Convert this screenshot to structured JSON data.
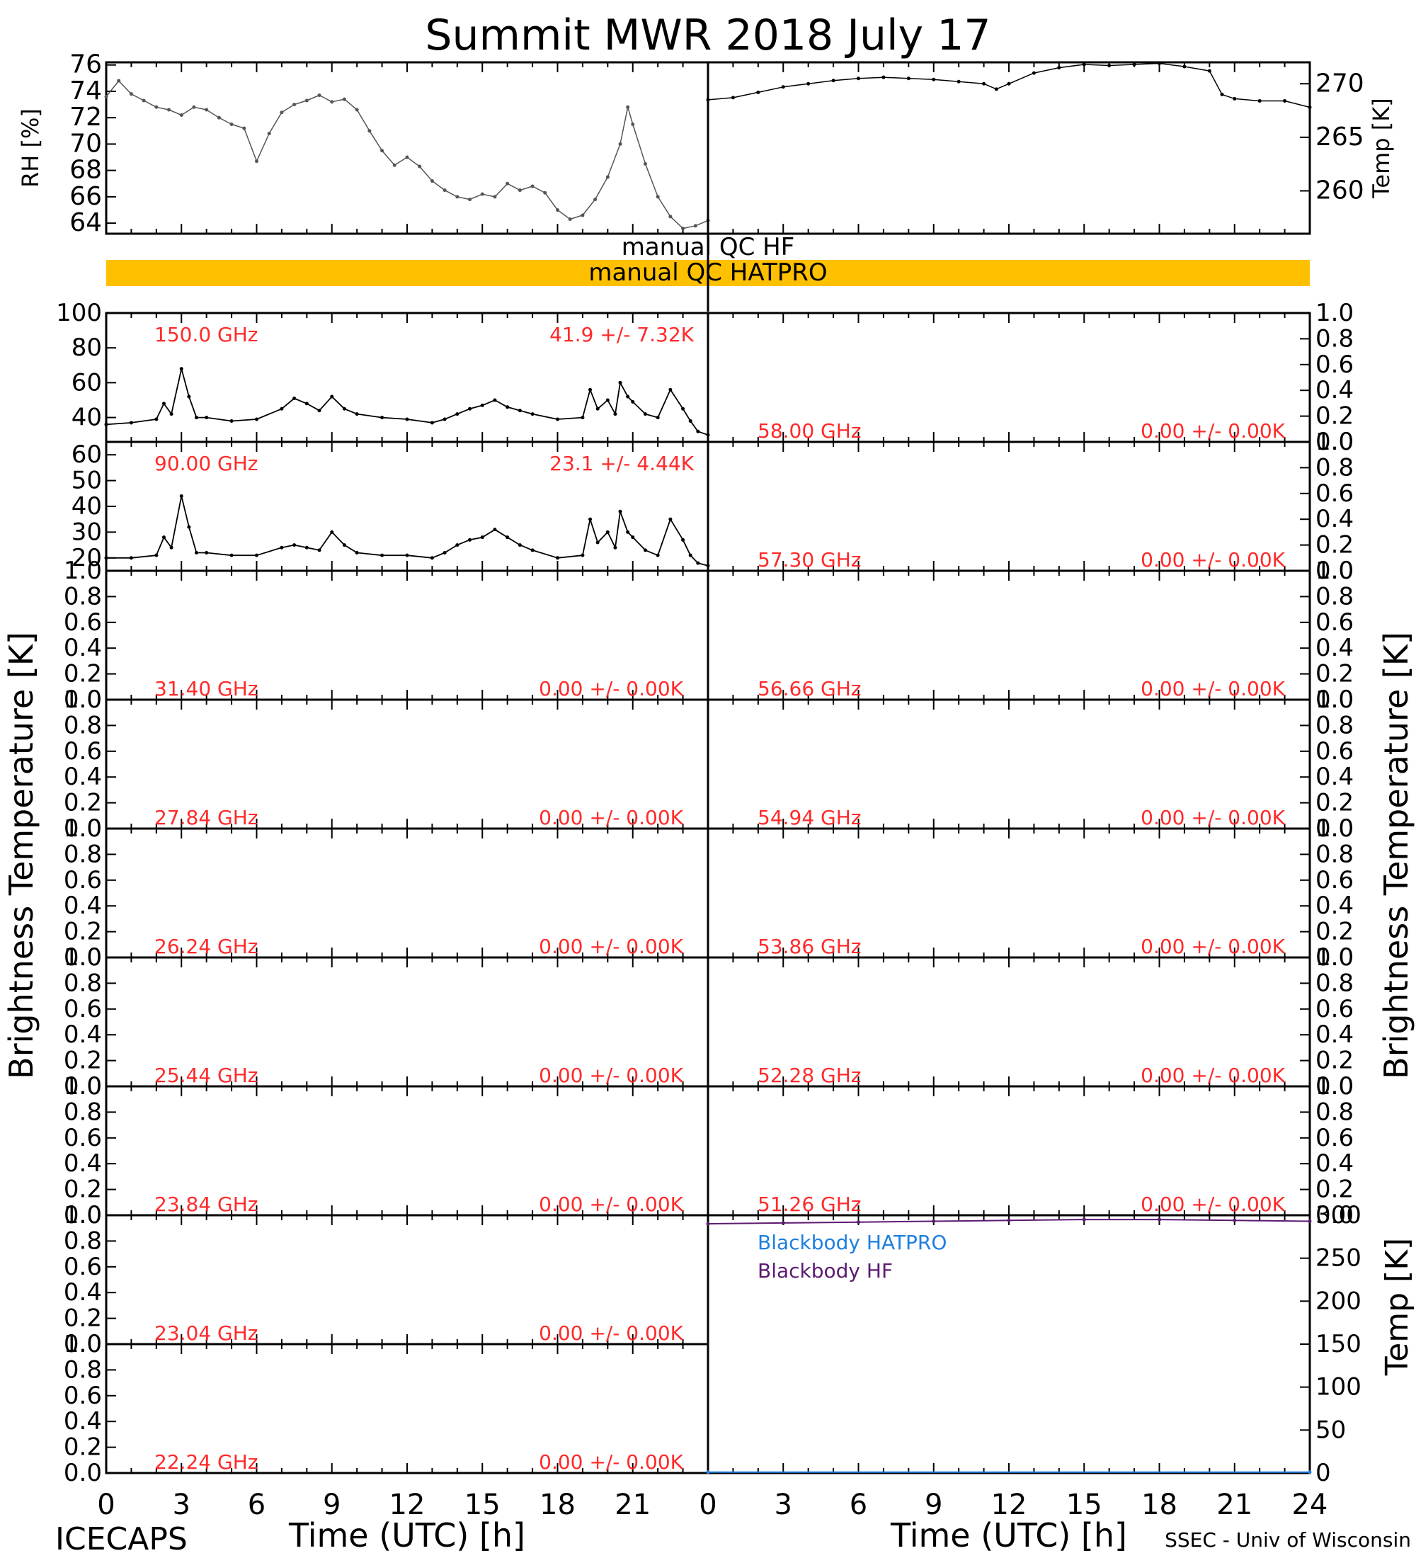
{
  "title": "Summit MWR 2018 July 17",
  "footer": {
    "left": "ICECAPS",
    "right": "SSEC - Univ of Wisconsin",
    "xlabel_left": "Time (UTC) [h]",
    "xlabel_right": "Time (UTC) [h]"
  },
  "x_ticks_left": [
    "0",
    "3",
    "6",
    "9",
    "12",
    "15",
    "18",
    "21"
  ],
  "x_ticks_right": [
    "0",
    "3",
    "6",
    "9",
    "12",
    "15",
    "18",
    "21",
    "24"
  ],
  "big_ylabel_left": "Brightness Temperature [K]",
  "big_ylabel_right": "Brightness Temperature [K]",
  "flag_bars": {
    "hf": "manual QC HF",
    "hatpro": "manual QC HATPRO",
    "hatpro_color": "#ffc000"
  },
  "colors": {
    "freq_label": "#ff2a2a",
    "bb_hatpro": "#1e7fe0",
    "bb_hf": "#5c1a70"
  },
  "chart_data": [
    {
      "id": "rh",
      "type": "scatter",
      "ylabel": "RH [%]",
      "xlim": [
        0,
        24
      ],
      "ylim": [
        63.2,
        76.2
      ],
      "yticks": [
        64,
        66,
        68,
        70,
        72,
        74,
        76
      ],
      "x": [
        0,
        0.5,
        1,
        1.5,
        2,
        2.5,
        3,
        3.5,
        4,
        4.5,
        5,
        5.5,
        6,
        6.5,
        7,
        7.5,
        8,
        8.5,
        9,
        9.5,
        10,
        10.5,
        11,
        11.5,
        12,
        12.5,
        13,
        13.5,
        14,
        14.5,
        15,
        15.5,
        16,
        16.5,
        17,
        17.5,
        18,
        18.5,
        19,
        19.5,
        20,
        20.5,
        20.8,
        21,
        21.5,
        22,
        22.5,
        23,
        23.5,
        24
      ],
      "values": [
        73.6,
        74.8,
        73.8,
        73.3,
        72.8,
        72.6,
        72.2,
        72.8,
        72.6,
        72.0,
        71.5,
        71.2,
        68.7,
        70.8,
        72.4,
        73.0,
        73.3,
        73.7,
        73.2,
        73.4,
        72.6,
        71.0,
        69.5,
        68.4,
        69.0,
        68.3,
        67.2,
        66.5,
        66.0,
        65.8,
        66.2,
        66.0,
        67.0,
        66.5,
        66.8,
        66.3,
        65.0,
        64.3,
        64.6,
        65.8,
        67.5,
        70.0,
        72.8,
        71.5,
        68.5,
        66.0,
        64.5,
        63.6,
        63.8,
        64.2
      ]
    },
    {
      "id": "temp",
      "type": "line",
      "ylabel": "Temp [K]",
      "xlim": [
        0,
        24
      ],
      "ylim": [
        256,
        272
      ],
      "yticks": [
        260,
        265,
        270
      ],
      "x": [
        0,
        1,
        2,
        3,
        4,
        5,
        6,
        7,
        8,
        9,
        10,
        11,
        11.5,
        12,
        13,
        14,
        15,
        16,
        17,
        18,
        19,
        20,
        20.5,
        21,
        22,
        23,
        24
      ],
      "values": [
        268.5,
        268.7,
        269.2,
        269.7,
        270.0,
        270.3,
        270.5,
        270.6,
        270.5,
        270.4,
        270.2,
        270.0,
        269.5,
        270.0,
        271.0,
        271.5,
        271.8,
        271.7,
        271.8,
        271.9,
        271.6,
        271.2,
        269.0,
        268.6,
        268.4,
        268.4,
        267.8
      ]
    },
    {
      "id": "bt-150",
      "type": "line",
      "xlim": [
        0,
        24
      ],
      "ylim": [
        26,
        100
      ],
      "yticks": [
        40,
        60,
        80,
        100
      ],
      "label_freq": "150.0 GHz",
      "label_stats": "41.9 +/- 7.32K",
      "x": [
        0,
        1,
        2,
        2.3,
        2.6,
        3,
        3.3,
        3.6,
        4,
        5,
        6,
        7,
        7.5,
        8,
        8.5,
        9,
        9.5,
        10,
        11,
        12,
        13,
        13.5,
        14,
        14.5,
        15,
        15.5,
        16,
        16.5,
        17,
        18,
        19,
        19.3,
        19.6,
        20,
        20.3,
        20.5,
        20.8,
        21,
        21.5,
        22,
        22.5,
        23,
        23.3,
        23.6,
        24
      ],
      "values": [
        36,
        37,
        39,
        48,
        42,
        68,
        52,
        40,
        40,
        38,
        39,
        45,
        51,
        48,
        44,
        52,
        45,
        42,
        40,
        39,
        37,
        39,
        42,
        45,
        47,
        50,
        46,
        44,
        42,
        39,
        40,
        56,
        45,
        50,
        42,
        60,
        52,
        49,
        42,
        40,
        56,
        45,
        38,
        32,
        30
      ]
    },
    {
      "id": "bt-90",
      "type": "line",
      "xlim": [
        0,
        24
      ],
      "ylim": [
        15,
        65
      ],
      "yticks": [
        20,
        30,
        40,
        50,
        60
      ],
      "label_freq": "90.00 GHz",
      "label_stats": "23.1 +/- 4.44K",
      "x": [
        0,
        1,
        2,
        2.3,
        2.6,
        3,
        3.3,
        3.6,
        4,
        5,
        6,
        7,
        7.5,
        8,
        8.5,
        9,
        9.5,
        10,
        11,
        12,
        13,
        13.5,
        14,
        14.5,
        15,
        15.5,
        16,
        16.5,
        17,
        18,
        19,
        19.3,
        19.6,
        20,
        20.3,
        20.5,
        20.8,
        21,
        21.5,
        22,
        22.5,
        23,
        23.3,
        23.6,
        24
      ],
      "values": [
        20,
        20,
        21,
        28,
        24,
        44,
        32,
        22,
        22,
        21,
        21,
        24,
        25,
        24,
        23,
        30,
        25,
        22,
        21,
        21,
        20,
        22,
        25,
        27,
        28,
        31,
        28,
        25,
        23,
        20,
        21,
        35,
        26,
        30,
        24,
        38,
        30,
        28,
        23,
        21,
        35,
        27,
        21,
        18,
        17
      ]
    }
  ],
  "left_channels": [
    {
      "freq": "31.40 GHz",
      "stats": "0.00 +/- 0.00K"
    },
    {
      "freq": "27.84 GHz",
      "stats": "0.00 +/- 0.00K"
    },
    {
      "freq": "26.24 GHz",
      "stats": "0.00 +/- 0.00K"
    },
    {
      "freq": "25.44 GHz",
      "stats": "0.00 +/- 0.00K"
    },
    {
      "freq": "23.84 GHz",
      "stats": "0.00 +/- 0.00K"
    },
    {
      "freq": "23.04 GHz",
      "stats": "0.00 +/- 0.00K"
    },
    {
      "freq": "22.24 GHz",
      "stats": "0.00 +/- 0.00K"
    }
  ],
  "right_channels": [
    {
      "freq": "58.00 GHz",
      "stats": "0.00 +/- 0.00K"
    },
    {
      "freq": "57.30 GHz",
      "stats": "0.00 +/- 0.00K"
    },
    {
      "freq": "56.66 GHz",
      "stats": "0.00 +/- 0.00K"
    },
    {
      "freq": "54.94 GHz",
      "stats": "0.00 +/- 0.00K"
    },
    {
      "freq": "53.86 GHz",
      "stats": "0.00 +/- 0.00K"
    },
    {
      "freq": "52.28 GHz",
      "stats": "0.00 +/- 0.00K"
    },
    {
      "freq": "51.26 GHz",
      "stats": "0.00 +/- 0.00K"
    }
  ],
  "empty_yticks": [
    "0.0",
    "0.2",
    "0.4",
    "0.6",
    "0.8",
    "1.0"
  ],
  "blackbody": {
    "ylabel": "Temp [K]",
    "xlim": [
      0,
      24
    ],
    "ylim": [
      0,
      300
    ],
    "yticks": [
      0,
      50,
      100,
      150,
      200,
      250,
      300
    ],
    "series": [
      {
        "name": "Blackbody HATPRO",
        "x": [
          0,
          24
        ],
        "values": [
          1,
          1
        ]
      },
      {
        "name": "Blackbody HF",
        "x": [
          0,
          3,
          6,
          9,
          12,
          15,
          18,
          21,
          24
        ],
        "values": [
          290,
          291,
          292,
          293,
          294,
          295,
          295,
          294,
          293
        ]
      }
    ]
  }
}
